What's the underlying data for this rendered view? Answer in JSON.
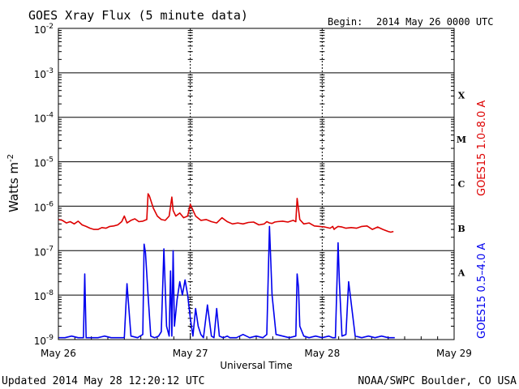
{
  "header": {
    "title": "GOES Xray Flux (5 minute data)",
    "begin_label": "Begin:",
    "begin_value": "2014 May 26 0000 UTC"
  },
  "footer": {
    "updated": "Updated 2014 May 28 12:20:12 UTC",
    "credit": "NOAA/SWPC Boulder, CO USA"
  },
  "chart_data": {
    "type": "line",
    "title": "GOES Xray Flux (5 minute data)",
    "xlabel": "Universal Time",
    "ylabel": "Watts m",
    "ylabel_sup": "-2",
    "y_scale": "log",
    "ylim": [
      1e-09,
      0.01
    ],
    "y_ticks": [
      {
        "base": "10",
        "exp": "-2"
      },
      {
        "base": "10",
        "exp": "-3"
      },
      {
        "base": "10",
        "exp": "-4"
      },
      {
        "base": "10",
        "exp": "-5"
      },
      {
        "base": "10",
        "exp": "-6"
      },
      {
        "base": "10",
        "exp": "-7"
      },
      {
        "base": "10",
        "exp": "-8"
      },
      {
        "base": "10",
        "exp": "-9"
      }
    ],
    "x_unit": "days since 2014 May 26 0000 UTC",
    "xlim": [
      0,
      3
    ],
    "x_ticks": [
      "May 26",
      "May 27",
      "May 28",
      "May 29"
    ],
    "flare_classes": [
      "X",
      "M",
      "C",
      "B",
      "A"
    ],
    "grid": true,
    "colors": {
      "long": "#dd0000",
      "short": "#0000ee",
      "frame": "#000000"
    },
    "series": [
      {
        "name": "GOES15 1.0–8.0 A",
        "color": "#dd0000",
        "x": [
          0.0,
          0.03,
          0.06,
          0.09,
          0.12,
          0.15,
          0.18,
          0.21,
          0.24,
          0.27,
          0.3,
          0.33,
          0.36,
          0.39,
          0.42,
          0.45,
          0.48,
          0.5,
          0.52,
          0.55,
          0.58,
          0.61,
          0.64,
          0.67,
          0.68,
          0.69,
          0.72,
          0.75,
          0.78,
          0.81,
          0.84,
          0.86,
          0.87,
          0.89,
          0.92,
          0.95,
          0.98,
          1.0,
          1.04,
          1.08,
          1.12,
          1.16,
          1.2,
          1.24,
          1.28,
          1.32,
          1.36,
          1.4,
          1.44,
          1.48,
          1.52,
          1.56,
          1.58,
          1.6,
          1.62,
          1.64,
          1.66,
          1.7,
          1.74,
          1.78,
          1.8,
          1.81,
          1.83,
          1.86,
          1.9,
          1.94,
          1.98,
          2.02,
          2.06,
          2.08,
          2.09,
          2.1,
          2.12,
          2.15,
          2.18,
          2.22,
          2.26,
          2.3,
          2.34,
          2.38,
          2.42,
          2.46,
          2.5,
          2.52,
          2.54
        ],
        "y": [
          5e-07,
          4.8e-07,
          4.2e-07,
          4.5e-07,
          4e-07,
          4.6e-07,
          3.8e-07,
          3.5e-07,
          3.2e-07,
          3e-07,
          3e-07,
          3.3e-07,
          3.2e-07,
          3.5e-07,
          3.6e-07,
          3.8e-07,
          4.5e-07,
          6e-07,
          4.2e-07,
          4.8e-07,
          5.2e-07,
          4.5e-07,
          4.6e-07,
          5e-07,
          1.9e-06,
          1.7e-06,
          9e-07,
          6e-07,
          5e-07,
          4.8e-07,
          6e-07,
          1.6e-06,
          8e-07,
          6e-07,
          7e-07,
          5.5e-07,
          6e-07,
          1.1e-06,
          6e-07,
          4.8e-07,
          5e-07,
          4.5e-07,
          4.2e-07,
          5.5e-07,
          4.5e-07,
          4e-07,
          4.2e-07,
          4e-07,
          4.3e-07,
          4.4e-07,
          3.8e-07,
          4e-07,
          4.5e-07,
          4.2e-07,
          4.1e-07,
          4.4e-07,
          4.5e-07,
          4.6e-07,
          4.4e-07,
          4.8e-07,
          4.5e-07,
          1.5e-06,
          5e-07,
          4e-07,
          4.2e-07,
          3.6e-07,
          3.5e-07,
          3.4e-07,
          3.2e-07,
          3.5e-07,
          3e-07,
          3.2e-07,
          3.5e-07,
          3.4e-07,
          3.2e-07,
          3.3e-07,
          3.2e-07,
          3.5e-07,
          3.6e-07,
          3e-07,
          3.4e-07,
          3e-07,
          2.7e-07,
          2.6e-07,
          2.7e-07
        ]
      },
      {
        "name": "GOES15 0.5–4.0 A",
        "color": "#0000ee",
        "x": [
          0.0,
          0.05,
          0.1,
          0.15,
          0.19,
          0.2,
          0.21,
          0.24,
          0.3,
          0.35,
          0.4,
          0.45,
          0.5,
          0.52,
          0.55,
          0.6,
          0.64,
          0.65,
          0.66,
          0.68,
          0.7,
          0.73,
          0.76,
          0.78,
          0.8,
          0.82,
          0.84,
          0.85,
          0.86,
          0.87,
          0.88,
          0.9,
          0.92,
          0.94,
          0.96,
          0.98,
          1.0,
          1.02,
          1.04,
          1.06,
          1.08,
          1.1,
          1.13,
          1.16,
          1.18,
          1.2,
          1.22,
          1.25,
          1.28,
          1.3,
          1.35,
          1.4,
          1.45,
          1.5,
          1.55,
          1.58,
          1.6,
          1.62,
          1.65,
          1.7,
          1.75,
          1.8,
          1.81,
          1.82,
          1.83,
          1.86,
          1.9,
          1.95,
          2.0,
          2.05,
          2.08,
          2.1,
          2.12,
          2.13,
          2.15,
          2.18,
          2.2,
          2.25,
          2.3,
          2.35,
          2.4,
          2.45,
          2.5,
          2.55
        ],
        "y": [
          1.1e-09,
          1.1e-09,
          1.2e-09,
          1.1e-09,
          1.1e-09,
          3e-08,
          1.1e-09,
          1.1e-09,
          1.1e-09,
          1.2e-09,
          1.1e-09,
          1.1e-09,
          1.1e-09,
          1.8e-08,
          1.2e-09,
          1.1e-09,
          1.3e-09,
          1.4e-07,
          9e-08,
          1e-08,
          1.2e-09,
          1.1e-09,
          1.2e-09,
          1.5e-09,
          1.1e-07,
          2e-09,
          1.2e-09,
          3.5e-08,
          1.2e-09,
          1e-07,
          2e-09,
          8e-09,
          2e-08,
          1e-08,
          2.2e-08,
          1e-08,
          3e-09,
          1.2e-09,
          5e-09,
          2e-09,
          1.3e-09,
          1.1e-09,
          6e-09,
          1.2e-09,
          1.1e-09,
          5e-09,
          1.2e-09,
          1.1e-09,
          1.2e-09,
          1.1e-09,
          1.1e-09,
          1.3e-09,
          1.1e-09,
          1.2e-09,
          1.1e-09,
          1.3e-09,
          3.5e-07,
          1e-08,
          1.3e-09,
          1.2e-09,
          1.1e-09,
          1.2e-09,
          3e-08,
          1.5e-08,
          2e-09,
          1.2e-09,
          1.1e-09,
          1.2e-09,
          1.1e-09,
          1.2e-09,
          1.1e-09,
          1.1e-09,
          1.5e-07,
          2e-08,
          1.2e-09,
          1.3e-09,
          2e-08,
          1.2e-09,
          1.1e-09,
          1.2e-09,
          1.1e-09,
          1.2e-09,
          1.1e-09,
          1.1e-09
        ]
      }
    ]
  }
}
